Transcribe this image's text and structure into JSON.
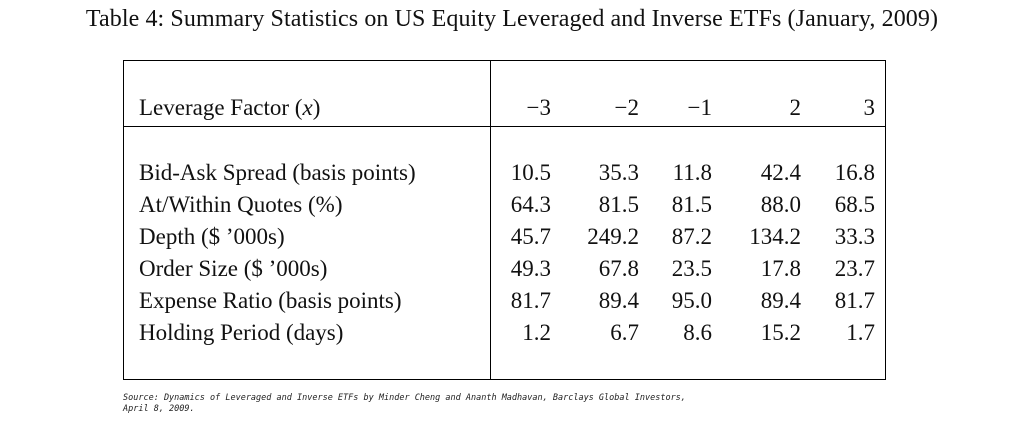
{
  "caption": "Table 4: Summary Statistics on US Equity Leveraged and Inverse ETFs (January, 2009)",
  "table": {
    "header_label_prefix": "Leverage Factor (",
    "header_label_var": "x",
    "header_label_suffix": ")",
    "columns": [
      "−3",
      "−2",
      "−1",
      "2",
      "3"
    ],
    "rows": [
      {
        "label": "Bid-Ask Spread (basis points)",
        "values": [
          "10.5",
          "35.3",
          "11.8",
          "42.4",
          "16.8"
        ]
      },
      {
        "label": "At/Within Quotes (%)",
        "values": [
          "64.3",
          "81.5",
          "81.5",
          "88.0",
          "68.5"
        ]
      },
      {
        "label": "Depth ($ ’000s)",
        "values": [
          "45.7",
          "249.2",
          "87.2",
          "134.2",
          "33.3"
        ]
      },
      {
        "label": "Order Size ($ ’000s)",
        "values": [
          "49.3",
          "67.8",
          "23.5",
          "17.8",
          "23.7"
        ]
      },
      {
        "label": "Expense Ratio (basis points)",
        "values": [
          "81.7",
          "89.4",
          "95.0",
          "89.4",
          "81.7"
        ]
      },
      {
        "label": "Holding Period (days)",
        "values": [
          "1.2",
          "6.7",
          "8.6",
          "15.2",
          "1.7"
        ]
      }
    ]
  },
  "source_line1": "Source: Dynamics of Leveraged and Inverse ETFs by Minder Cheng and Ananth Madhavan, Barclays Global Investors,",
  "source_line2": "April 8, 2009."
}
